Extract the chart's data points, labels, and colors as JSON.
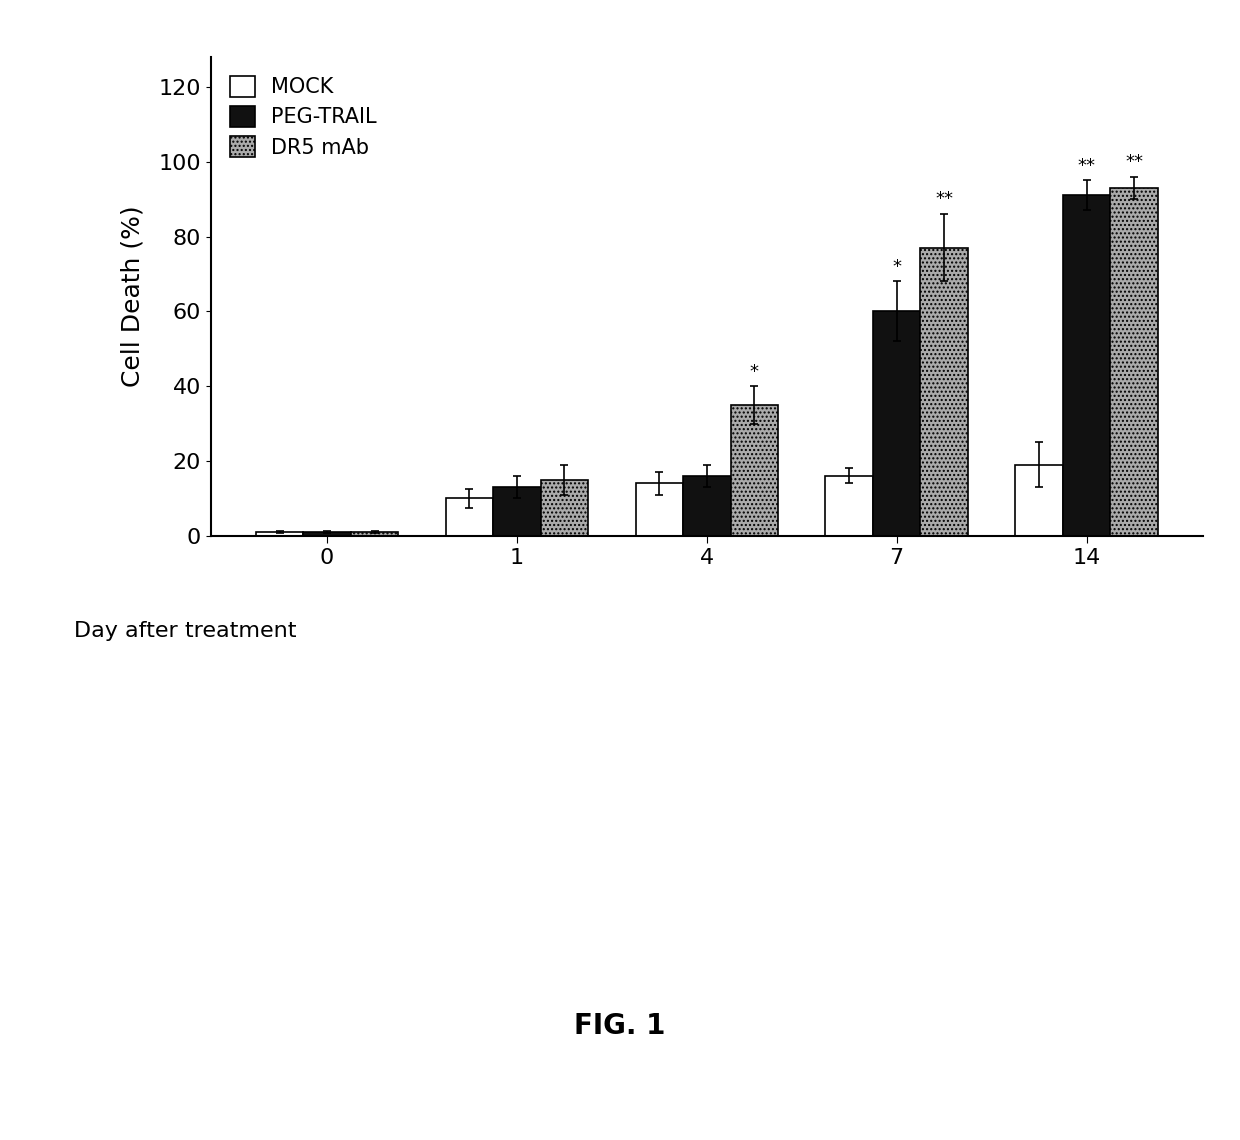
{
  "days": [
    "0",
    "1",
    "4",
    "7",
    "14"
  ],
  "mock_values": [
    1,
    10,
    14,
    16,
    19
  ],
  "peg_trail_values": [
    1,
    13,
    16,
    60,
    91
  ],
  "dr5_mab_values": [
    1,
    15,
    35,
    77,
    93
  ],
  "mock_errors": [
    0.3,
    2.5,
    3,
    2,
    6
  ],
  "peg_trail_errors": [
    0.3,
    3,
    3,
    8,
    4
  ],
  "dr5_mab_errors": [
    0.3,
    4,
    5,
    9,
    3
  ],
  "mock_color": "#ffffff",
  "peg_trail_color": "#111111",
  "dr5_mab_color": "#aaaaaa",
  "bar_edge_color": "#000000",
  "ylabel": "Cell Death (%)",
  "xlabel": "Day after treatment",
  "ylim": [
    0,
    128
  ],
  "yticks": [
    0,
    20,
    40,
    60,
    80,
    100,
    120
  ],
  "legend_labels": [
    "MOCK",
    "PEG-TRAIL",
    "DR5 mAb"
  ],
  "title": "FIG. 1",
  "bar_width": 0.25,
  "background_color": "#ffffff"
}
